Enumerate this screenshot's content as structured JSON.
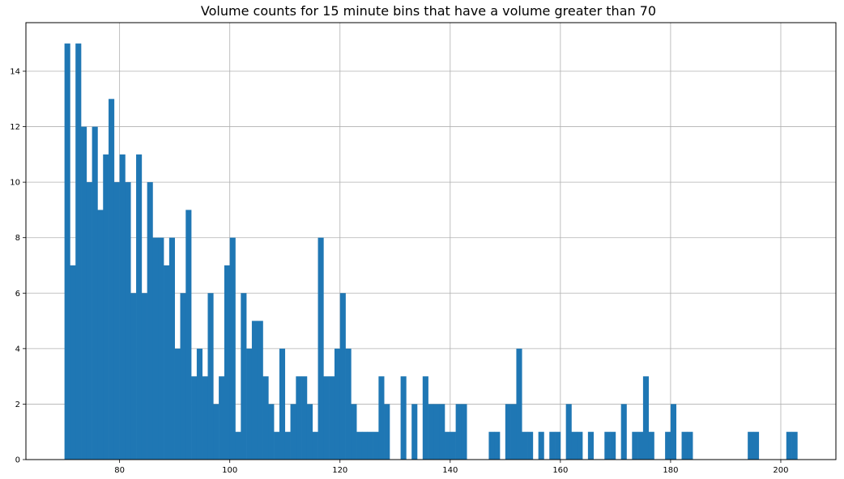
{
  "chart_data": {
    "type": "bar",
    "title": "Volume counts for 15 minute bins that have a volume greater than 70",
    "xlabel": "",
    "ylabel": "",
    "xlim": [
      63,
      210
    ],
    "ylim": [
      0,
      15.75
    ],
    "grid": true,
    "bar_color": "#1f77b4",
    "bin_width": 1,
    "xticks": [
      80,
      100,
      120,
      140,
      160,
      180,
      200
    ],
    "yticks": [
      0,
      2,
      4,
      6,
      8,
      10,
      12,
      14
    ],
    "bins": [
      {
        "x": 70,
        "count": 15
      },
      {
        "x": 71,
        "count": 7
      },
      {
        "x": 72,
        "count": 15
      },
      {
        "x": 73,
        "count": 12
      },
      {
        "x": 74,
        "count": 10
      },
      {
        "x": 75,
        "count": 12
      },
      {
        "x": 76,
        "count": 9
      },
      {
        "x": 77,
        "count": 11
      },
      {
        "x": 78,
        "count": 13
      },
      {
        "x": 79,
        "count": 10
      },
      {
        "x": 80,
        "count": 11
      },
      {
        "x": 81,
        "count": 10
      },
      {
        "x": 82,
        "count": 6
      },
      {
        "x": 83,
        "count": 11
      },
      {
        "x": 84,
        "count": 6
      },
      {
        "x": 85,
        "count": 10
      },
      {
        "x": 86,
        "count": 8
      },
      {
        "x": 87,
        "count": 8
      },
      {
        "x": 88,
        "count": 7
      },
      {
        "x": 89,
        "count": 8
      },
      {
        "x": 90,
        "count": 4
      },
      {
        "x": 91,
        "count": 6
      },
      {
        "x": 92,
        "count": 9
      },
      {
        "x": 93,
        "count": 3
      },
      {
        "x": 94,
        "count": 4
      },
      {
        "x": 95,
        "count": 3
      },
      {
        "x": 96,
        "count": 6
      },
      {
        "x": 97,
        "count": 2
      },
      {
        "x": 98,
        "count": 3
      },
      {
        "x": 99,
        "count": 7
      },
      {
        "x": 100,
        "count": 8
      },
      {
        "x": 101,
        "count": 1
      },
      {
        "x": 102,
        "count": 6
      },
      {
        "x": 103,
        "count": 4
      },
      {
        "x": 104,
        "count": 5
      },
      {
        "x": 105,
        "count": 5
      },
      {
        "x": 106,
        "count": 3
      },
      {
        "x": 107,
        "count": 2
      },
      {
        "x": 108,
        "count": 1
      },
      {
        "x": 109,
        "count": 4
      },
      {
        "x": 110,
        "count": 1
      },
      {
        "x": 111,
        "count": 2
      },
      {
        "x": 112,
        "count": 3
      },
      {
        "x": 113,
        "count": 3
      },
      {
        "x": 114,
        "count": 2
      },
      {
        "x": 115,
        "count": 1
      },
      {
        "x": 116,
        "count": 8
      },
      {
        "x": 117,
        "count": 3
      },
      {
        "x": 118,
        "count": 3
      },
      {
        "x": 119,
        "count": 4
      },
      {
        "x": 120,
        "count": 6
      },
      {
        "x": 121,
        "count": 4
      },
      {
        "x": 122,
        "count": 2
      },
      {
        "x": 123,
        "count": 1
      },
      {
        "x": 124,
        "count": 1
      },
      {
        "x": 125,
        "count": 1
      },
      {
        "x": 126,
        "count": 1
      },
      {
        "x": 127,
        "count": 3
      },
      {
        "x": 128,
        "count": 2
      },
      {
        "x": 131,
        "count": 3
      },
      {
        "x": 133,
        "count": 2
      },
      {
        "x": 135,
        "count": 3
      },
      {
        "x": 136,
        "count": 2
      },
      {
        "x": 137,
        "count": 2
      },
      {
        "x": 138,
        "count": 2
      },
      {
        "x": 139,
        "count": 1
      },
      {
        "x": 140,
        "count": 1
      },
      {
        "x": 141,
        "count": 2
      },
      {
        "x": 142,
        "count": 2
      },
      {
        "x": 147,
        "count": 1
      },
      {
        "x": 148,
        "count": 1
      },
      {
        "x": 150,
        "count": 2
      },
      {
        "x": 151,
        "count": 2
      },
      {
        "x": 152,
        "count": 4
      },
      {
        "x": 153,
        "count": 1
      },
      {
        "x": 154,
        "count": 1
      },
      {
        "x": 156,
        "count": 1
      },
      {
        "x": 158,
        "count": 1
      },
      {
        "x": 159,
        "count": 1
      },
      {
        "x": 161,
        "count": 2
      },
      {
        "x": 162,
        "count": 1
      },
      {
        "x": 163,
        "count": 1
      },
      {
        "x": 165,
        "count": 1
      },
      {
        "x": 168,
        "count": 1
      },
      {
        "x": 169,
        "count": 1
      },
      {
        "x": 171,
        "count": 2
      },
      {
        "x": 173,
        "count": 1
      },
      {
        "x": 174,
        "count": 1
      },
      {
        "x": 175,
        "count": 3
      },
      {
        "x": 176,
        "count": 1
      },
      {
        "x": 179,
        "count": 1
      },
      {
        "x": 180,
        "count": 2
      },
      {
        "x": 182,
        "count": 1
      },
      {
        "x": 183,
        "count": 1
      },
      {
        "x": 194,
        "count": 1
      },
      {
        "x": 195,
        "count": 1
      },
      {
        "x": 201,
        "count": 1
      },
      {
        "x": 202,
        "count": 1
      }
    ]
  }
}
